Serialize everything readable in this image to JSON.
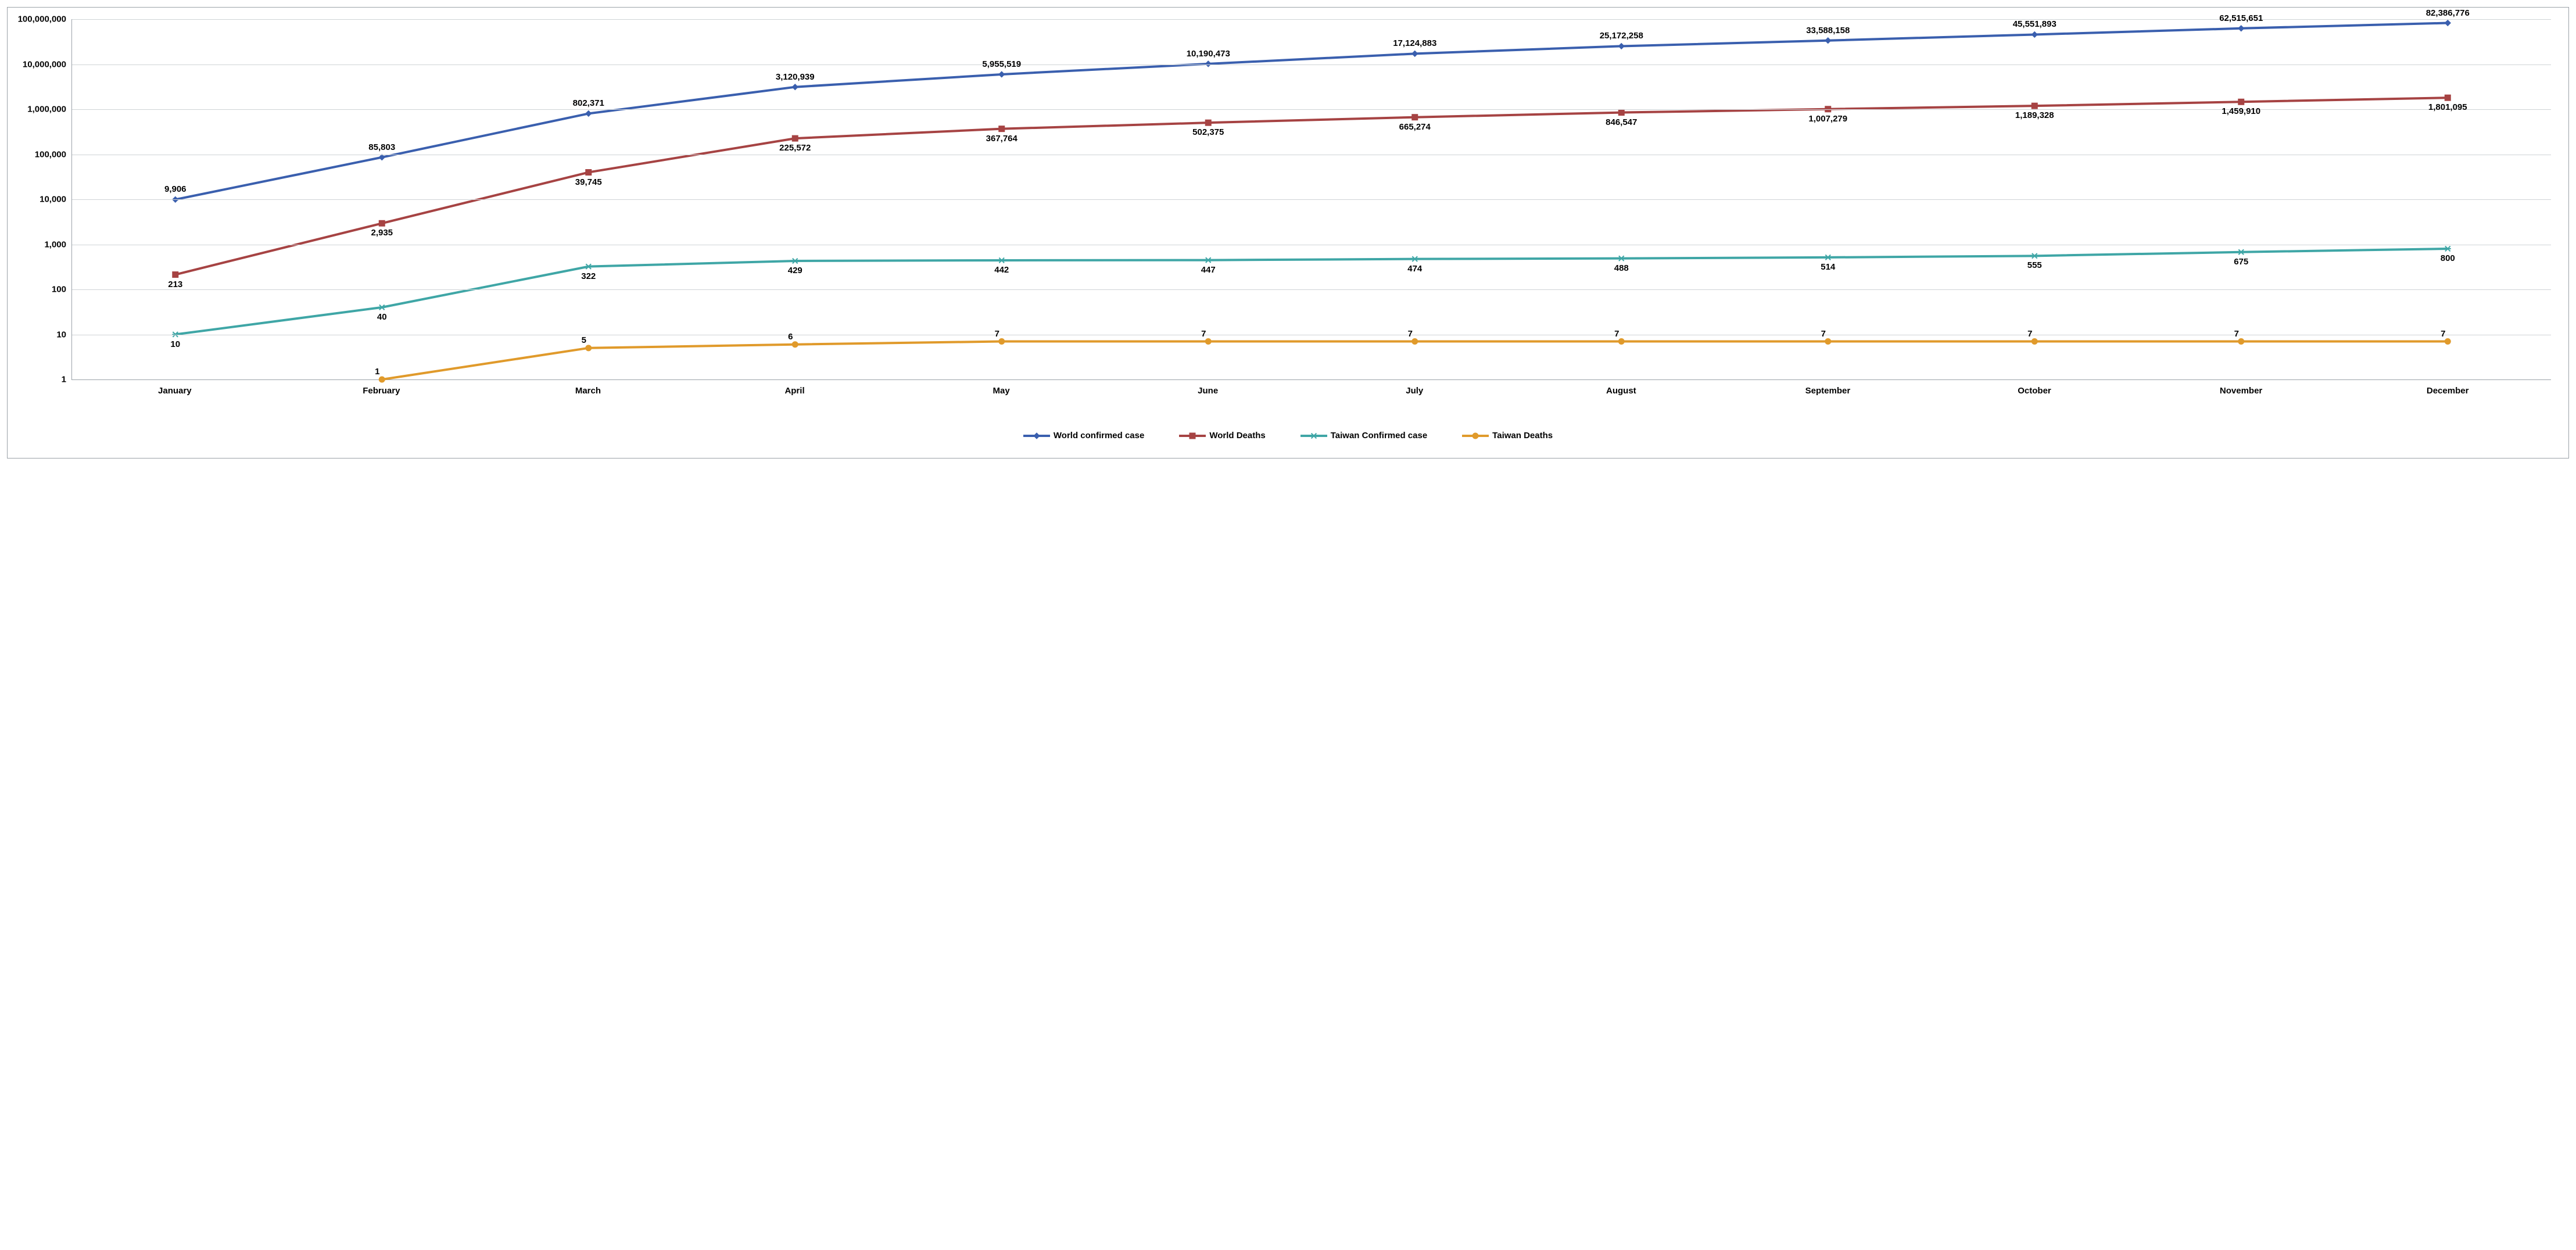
{
  "chart": {
    "type": "line",
    "xCategories": [
      "January",
      "February",
      "March",
      "April",
      "May",
      "June",
      "July",
      "August",
      "September",
      "October",
      "November",
      "December"
    ],
    "yAxis": {
      "scale": "log",
      "min": 1,
      "max": 100000000,
      "ticks": [
        1,
        10,
        100,
        1000,
        10000,
        100000,
        1000000,
        10000000,
        100000000
      ],
      "tickLabels": [
        "1",
        "10",
        "100",
        "1,000",
        "10,000",
        "100,000",
        "1,000,000",
        "10,000,000",
        "100,000,000"
      ]
    },
    "grid": {
      "color": "#cfd3d6"
    },
    "axisColor": "#9aa1a8",
    "background": "#ffffff",
    "font": {
      "family": "Arial",
      "size": 15,
      "weight": "bold",
      "color": "#000000"
    },
    "lineWidth": 4,
    "markerSize": 10,
    "series": [
      {
        "id": "world_confirmed",
        "name": "World confirmed case",
        "color": "#3a5fae",
        "marker": "diamond",
        "labelPosition": "above",
        "values": [
          9906,
          85803,
          802371,
          3120939,
          5955519,
          10190473,
          17124883,
          25172258,
          33588158,
          45551893,
          62515651,
          82386776
        ],
        "valueLabels": [
          "9,906",
          "85,803",
          "802,371",
          "3,120,939",
          "5,955,519",
          "10,190,473",
          "17,124,883",
          "25,172,258",
          "33,588,158",
          "45,551,893",
          "62,515,651",
          "82,386,776"
        ]
      },
      {
        "id": "world_deaths",
        "name": "World Deaths",
        "color": "#a64343",
        "marker": "square",
        "labelPosition": "below",
        "values": [
          213,
          2935,
          39745,
          225572,
          367764,
          502375,
          665274,
          846547,
          1007279,
          1189328,
          1459910,
          1801095
        ],
        "valueLabels": [
          "213",
          "2,935",
          "39,745",
          "225,572",
          "367,764",
          "502,375",
          "665,274",
          "846,547",
          "1,007,279",
          "1,189,328",
          "1,459,910",
          "1,801,095"
        ]
      },
      {
        "id": "taiwan_confirmed",
        "name": "Taiwan Confirmed case",
        "color": "#3fa6a6",
        "marker": "asterisk",
        "labelPosition": "below",
        "values": [
          10,
          40,
          322,
          429,
          442,
          447,
          474,
          488,
          514,
          555,
          675,
          800
        ],
        "valueLabels": [
          "10",
          "40",
          "322",
          "429",
          "442",
          "447",
          "474",
          "488",
          "514",
          "555",
          "675",
          "800"
        ]
      },
      {
        "id": "taiwan_deaths",
        "name": "Taiwan Deaths",
        "color": "#e09a2b",
        "marker": "circle",
        "labelPosition": "above-left",
        "values": [
          null,
          1,
          5,
          6,
          7,
          7,
          7,
          7,
          7,
          7,
          7,
          7
        ],
        "valueLabels": [
          null,
          "1",
          "5",
          "6",
          "7",
          "7",
          "7",
          "7",
          "7",
          "7",
          "7",
          "7"
        ]
      }
    ],
    "legendPosition": "bottom"
  }
}
